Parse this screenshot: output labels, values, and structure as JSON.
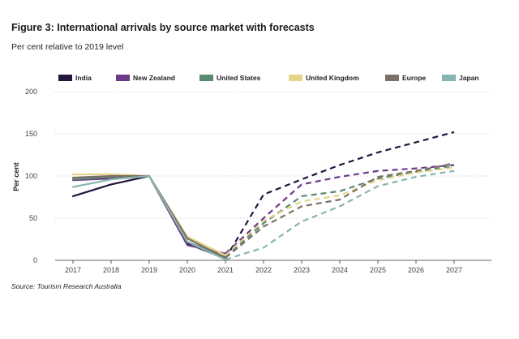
{
  "chart_data": {
    "type": "line",
    "title": "Figure 3: International arrivals by source market with forecasts",
    "subtitle": "Per cent relative to 2019 level",
    "ylabel": "Per cent",
    "xlabel": "",
    "source": "Source: Tourism Research Australia",
    "x": [
      2017,
      2018,
      2019,
      2020,
      2021,
      2022,
      2023,
      2024,
      2025,
      2026,
      2027
    ],
    "ylim": [
      0,
      200
    ],
    "yticks": [
      0,
      50,
      100,
      150,
      200
    ],
    "actual_until": 2021,
    "grid": "horizontal-dotted",
    "legend_position": "top",
    "series": [
      {
        "name": "India",
        "color": "#24163d",
        "values": [
          76,
          90,
          100,
          20,
          2,
          78,
          96,
          113,
          128,
          140,
          152
        ]
      },
      {
        "name": "New Zealand",
        "color": "#6b3a87",
        "values": [
          95,
          97,
          100,
          18,
          8,
          50,
          90,
          99,
          106,
          109,
          113
        ]
      },
      {
        "name": "United States",
        "color": "#5b8a72",
        "values": [
          96,
          99,
          100,
          22,
          4,
          44,
          76,
          82,
          97,
          105,
          112
        ]
      },
      {
        "name": "United Kingdom",
        "color": "#e6d488",
        "values": [
          102,
          102,
          100,
          28,
          6,
          47,
          70,
          77,
          95,
          104,
          110
        ]
      },
      {
        "name": "Europe",
        "color": "#7b7066",
        "values": [
          98,
          100,
          100,
          26,
          3,
          40,
          64,
          72,
          99,
          106,
          115
        ]
      },
      {
        "name": "Japan",
        "color": "#87b4b0",
        "values": [
          87,
          96,
          100,
          22,
          1,
          15,
          46,
          64,
          88,
          99,
          106
        ]
      }
    ]
  }
}
